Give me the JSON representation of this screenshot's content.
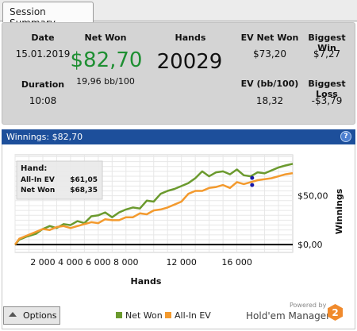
{
  "tab": {
    "label": "Session Summary"
  },
  "summary": {
    "date_label": "Date",
    "date_value": "15.01.2019",
    "duration_label": "Duration",
    "duration_value": "10:08",
    "net_won_label": "Net Won",
    "net_won_value": "$82,70",
    "net_won_sub": "19,96 bb/100",
    "hands_label": "Hands",
    "hands_value": "20029",
    "ev_net_won_label": "EV Net Won",
    "ev_net_won_value": "$73,20",
    "ev_bb_label": "EV (bb/100)",
    "ev_bb_value": "18,32",
    "biggest_win_label": "Biggest Win",
    "biggest_win_value": "$7,27",
    "biggest_loss_label": "Biggest Loss",
    "biggest_loss_value": "-$3,79"
  },
  "chart_header": {
    "title": "Winnings: $82,70",
    "help_icon": "help-icon",
    "help_label": "?"
  },
  "tooltip": {
    "title": "Hand:",
    "rows": [
      {
        "label": "All-In EV",
        "value": "$61,05"
      },
      {
        "label": "Net Won",
        "value": "$68,35"
      }
    ]
  },
  "chart_data": {
    "type": "line",
    "xlabel": "Hands",
    "ylabel": "Winnings",
    "xlim": [
      0,
      20029
    ],
    "ylim": [
      -8,
      92
    ],
    "x_ticks": [
      "2 000",
      "4 000",
      "6 000",
      "8 000",
      "12 000",
      "16 000"
    ],
    "x_tick_values": [
      2000,
      4000,
      6000,
      8000,
      12000,
      16000
    ],
    "y_ticks": [
      "$0,00",
      "$50,00"
    ],
    "y_tick_values": [
      0,
      50
    ],
    "grid": true,
    "zero_line": true,
    "series": [
      {
        "name": "Net Won",
        "color": "#6b9a2e",
        "x": [
          0,
          300,
          800,
          1500,
          2000,
          2500,
          3000,
          3500,
          4000,
          4500,
          5000,
          5500,
          6000,
          6500,
          7000,
          7500,
          8000,
          8500,
          9000,
          9500,
          10000,
          10500,
          11000,
          11500,
          12000,
          12500,
          13000,
          13500,
          14000,
          14500,
          15000,
          15500,
          16000,
          16500,
          17000,
          17500,
          18000,
          18500,
          19000,
          19500,
          20029
        ],
        "values": [
          0,
          5,
          8,
          11,
          16,
          19,
          17,
          21,
          20,
          24,
          22,
          29,
          30,
          33,
          28,
          33,
          36,
          38,
          37,
          45,
          44,
          52,
          55,
          57,
          60,
          63,
          68,
          75,
          70,
          74,
          75,
          72,
          77,
          71,
          70,
          74,
          73,
          76,
          79,
          81,
          82.7
        ]
      },
      {
        "name": "All-In EV",
        "color": "#f39a2e",
        "x": [
          0,
          300,
          800,
          1500,
          2000,
          2500,
          3000,
          3500,
          4000,
          4500,
          5000,
          5500,
          6000,
          6500,
          7000,
          7500,
          8000,
          8500,
          9000,
          9500,
          10000,
          10500,
          11000,
          11500,
          12000,
          12500,
          13000,
          13500,
          14000,
          14500,
          15000,
          15500,
          16000,
          16500,
          17000,
          17500,
          18000,
          18500,
          19000,
          19500,
          20029
        ],
        "values": [
          0,
          6,
          9,
          13,
          16,
          15,
          18,
          19,
          17,
          19,
          21,
          23,
          22,
          26,
          25,
          25,
          28,
          28,
          32,
          31,
          35,
          36,
          38,
          41,
          44,
          52,
          55,
          55,
          58,
          59,
          61,
          58,
          64,
          62,
          64,
          66,
          67,
          68,
          70,
          72,
          73.2
        ]
      }
    ],
    "markers": [
      {
        "series": "Net Won",
        "x": 17100,
        "y": 68.35,
        "color": "#1a1aa8"
      },
      {
        "series": "All-In EV",
        "x": 17100,
        "y": 61.05,
        "color": "#1a1aa8"
      }
    ]
  },
  "options": {
    "label": "Options",
    "icon": "triangle-up-icon"
  },
  "legend": [
    {
      "label": "Net Won",
      "color": "#6b9a2e"
    },
    {
      "label": "All-In EV",
      "color": "#f39a2e"
    }
  ],
  "branding": {
    "powered": "Powered by",
    "name": "Hold'em Manager",
    "badge": "2",
    "badge_color": "#f08a2c"
  }
}
